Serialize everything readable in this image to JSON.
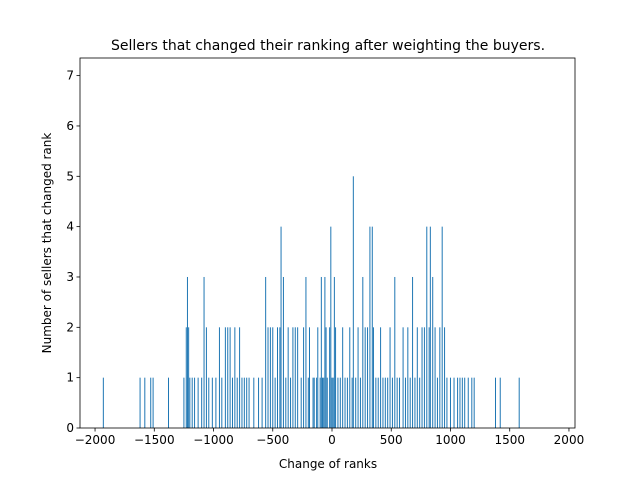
{
  "chart_data": {
    "type": "bar",
    "title": "Sellers that changed their ranking after weighting the buyers.",
    "xlabel": "Change of ranks",
    "ylabel": "Number of sellers that changed rank",
    "color": "#1f77b4",
    "x": [
      -1930,
      -1620,
      -1580,
      -1530,
      -1510,
      -1380,
      -1250,
      -1230,
      -1220,
      -1210,
      -1200,
      -1180,
      -1160,
      -1130,
      -1100,
      -1080,
      -1060,
      -1040,
      -1010,
      -980,
      -950,
      -930,
      -900,
      -880,
      -860,
      -840,
      -820,
      -800,
      -780,
      -760,
      -740,
      -720,
      -700,
      -660,
      -620,
      -590,
      -560,
      -540,
      -520,
      -500,
      -480,
      -460,
      -440,
      -430,
      -410,
      -390,
      -370,
      -350,
      -330,
      -310,
      -290,
      -260,
      -240,
      -220,
      -200,
      -190,
      -160,
      -150,
      -130,
      -120,
      -100,
      -90,
      -80,
      -70,
      -60,
      -50,
      -40,
      -20,
      -10,
      0,
      10,
      20,
      30,
      50,
      70,
      90,
      110,
      130,
      150,
      170,
      180,
      200,
      220,
      240,
      260,
      280,
      300,
      320,
      340,
      350,
      370,
      390,
      410,
      430,
      450,
      470,
      490,
      510,
      530,
      550,
      570,
      600,
      620,
      640,
      660,
      680,
      700,
      720,
      740,
      760,
      780,
      800,
      820,
      830,
      850,
      870,
      890,
      910,
      930,
      950,
      970,
      1000,
      1030,
      1060,
      1080,
      1100,
      1120,
      1150,
      1180,
      1200,
      1380,
      1420,
      1580
    ],
    "values": [
      1,
      1,
      1,
      1,
      1,
      1,
      1,
      2,
      3,
      2,
      1,
      1,
      1,
      1,
      1,
      3,
      2,
      1,
      1,
      1,
      2,
      1,
      2,
      2,
      2,
      1,
      2,
      1,
      2,
      1,
      1,
      1,
      1,
      1,
      1,
      1,
      3,
      2,
      2,
      2,
      1,
      2,
      2,
      4,
      3,
      1,
      2,
      1,
      2,
      2,
      2,
      1,
      2,
      3,
      1,
      2,
      1,
      1,
      1,
      2,
      1,
      3,
      1,
      1,
      3,
      2,
      1,
      2,
      4,
      1,
      1,
      3,
      2,
      1,
      1,
      2,
      1,
      1,
      2,
      1,
      5,
      1,
      2,
      1,
      3,
      2,
      2,
      4,
      4,
      2,
      1,
      1,
      2,
      1,
      1,
      1,
      2,
      1,
      3,
      1,
      1,
      2,
      1,
      2,
      1,
      3,
      1,
      2,
      1,
      2,
      2,
      4,
      2,
      4,
      3,
      2,
      1,
      2,
      4,
      2,
      1,
      1,
      1,
      1,
      1,
      1,
      1,
      1,
      1,
      1,
      1,
      1,
      1
    ],
    "xlim": [
      -2127,
      2051
    ],
    "ylim": [
      0,
      7.35
    ],
    "xticks": [
      {
        "value": -2000,
        "label": "−2000"
      },
      {
        "value": -1500,
        "label": "−1500"
      },
      {
        "value": -1000,
        "label": "−1000"
      },
      {
        "value": -500,
        "label": "−500"
      },
      0,
      500,
      1000,
      1500,
      2000
    ],
    "yticks": [
      0,
      1,
      2,
      3,
      4,
      5,
      6,
      7
    ]
  }
}
